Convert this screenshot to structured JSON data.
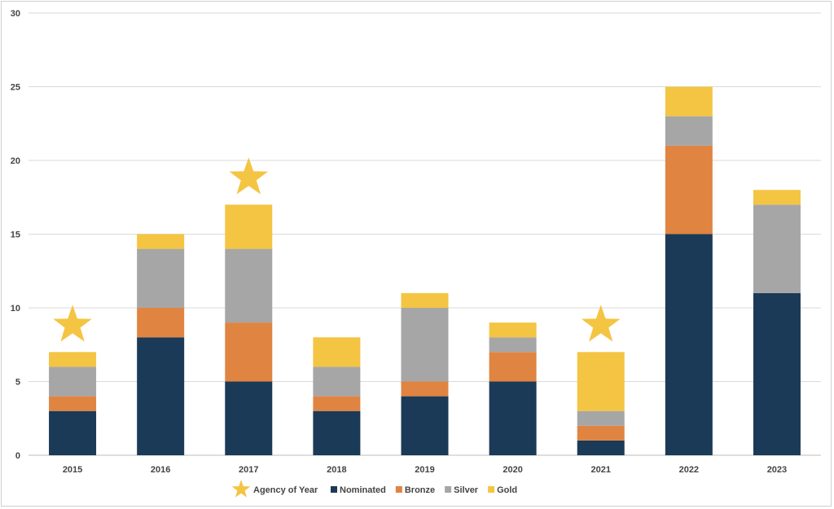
{
  "chart_data": {
    "type": "bar",
    "stacked": true,
    "title": "",
    "xlabel": "",
    "ylabel": "",
    "ylim": [
      0,
      30
    ],
    "yticks": [
      0,
      5,
      10,
      15,
      20,
      25,
      30
    ],
    "grid": true,
    "legend_position": "bottom",
    "categories": [
      "2015",
      "2016",
      "2017",
      "2018",
      "2019",
      "2020",
      "2021",
      "2022",
      "2023"
    ],
    "series": [
      {
        "name": "Nominated",
        "color": "#1a3a57",
        "values": [
          3,
          8,
          5,
          3,
          4,
          5,
          1,
          15,
          11
        ]
      },
      {
        "name": "Bronze",
        "color": "#e08441",
        "values": [
          1,
          2,
          4,
          1,
          1,
          2,
          1,
          6,
          0
        ]
      },
      {
        "name": "Silver",
        "color": "#a6a6a6",
        "values": [
          2,
          4,
          5,
          2,
          5,
          1,
          1,
          2,
          6
        ]
      },
      {
        "name": "Gold",
        "color": "#f4c443",
        "values": [
          1,
          1,
          3,
          2,
          1,
          1,
          4,
          2,
          1
        ]
      }
    ],
    "markers": {
      "name": "Agency of Year",
      "symbol": "star",
      "color": "#f4c443",
      "categories": [
        "2015",
        "2017",
        "2021"
      ]
    }
  }
}
